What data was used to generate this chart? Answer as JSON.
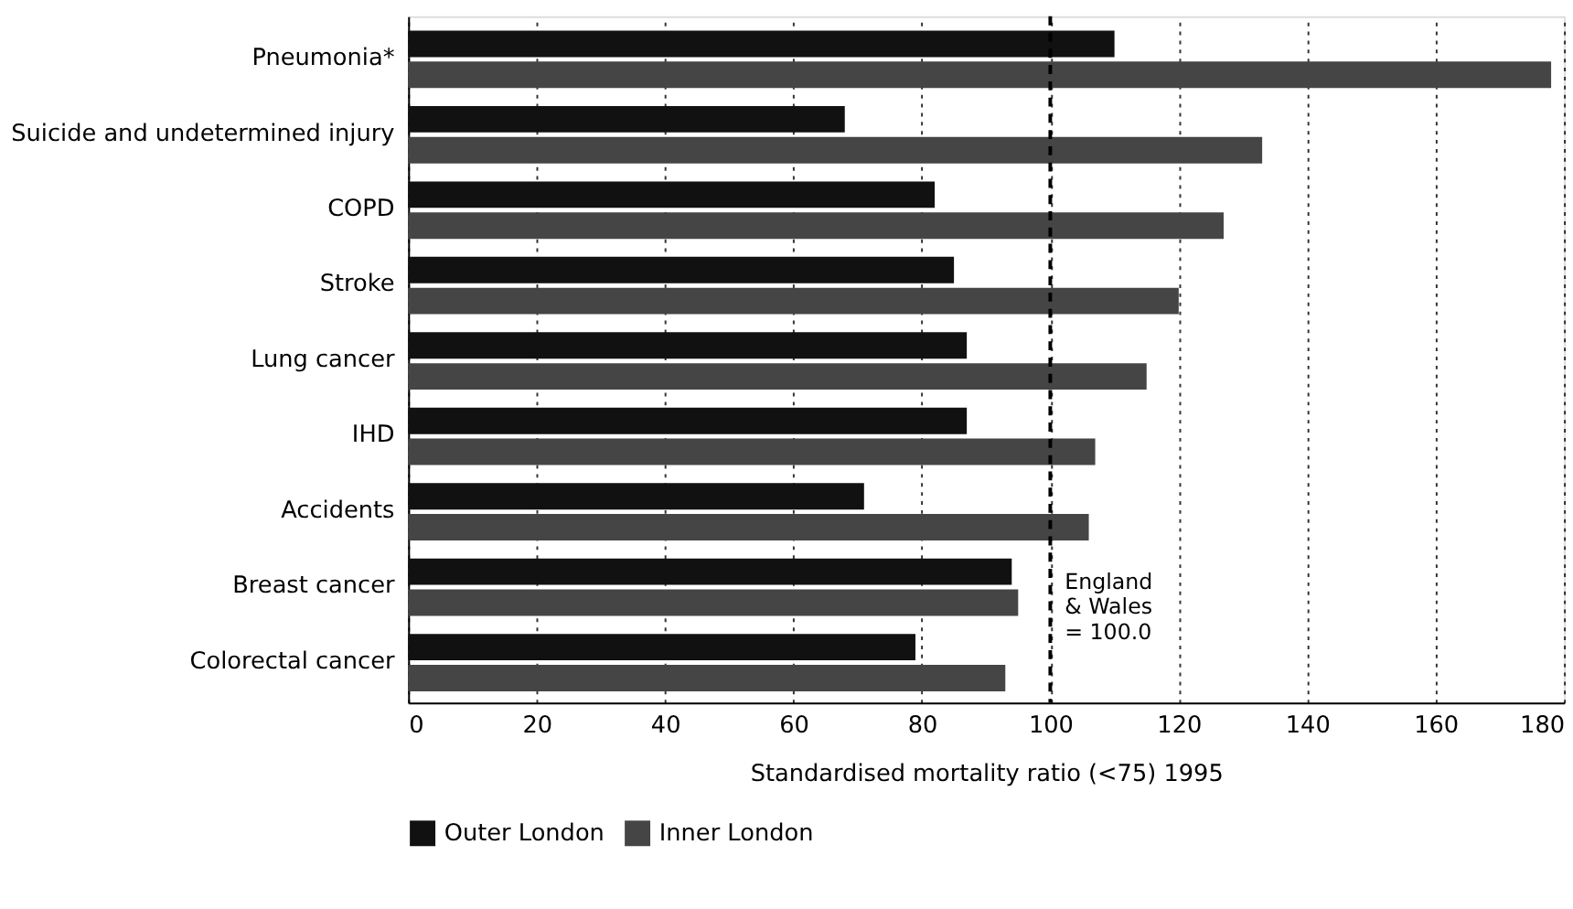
{
  "chart_data": {
    "type": "bar",
    "orientation": "horizontal",
    "categories": [
      "Pneumonia*",
      "Suicide and undetermined injury",
      "COPD",
      "Stroke",
      "Lung cancer",
      "IHD",
      "Accidents",
      "Breast cancer",
      "Colorectal cancer"
    ],
    "series": [
      {
        "name": "Outer London",
        "color": "#111111",
        "values": [
          110,
          68,
          82,
          85,
          87,
          87,
          71,
          94,
          79
        ]
      },
      {
        "name": "Inner London",
        "color": "#454545",
        "values": [
          178,
          133,
          127,
          120,
          115,
          107,
          106,
          95,
          93
        ]
      }
    ],
    "xlabel": "Standardised mortality ratio (<75) 1995",
    "xlim": [
      0,
      180
    ],
    "xticks": [
      0,
      20,
      40,
      60,
      80,
      100,
      120,
      140,
      160,
      180
    ],
    "grid": "x",
    "legend": "bottom",
    "ref_lines": [
      {
        "axis": "x",
        "value": 100,
        "label": "England\n& Wales\n= 100.0",
        "line_style": "dashed",
        "color": "#000000"
      }
    ]
  }
}
